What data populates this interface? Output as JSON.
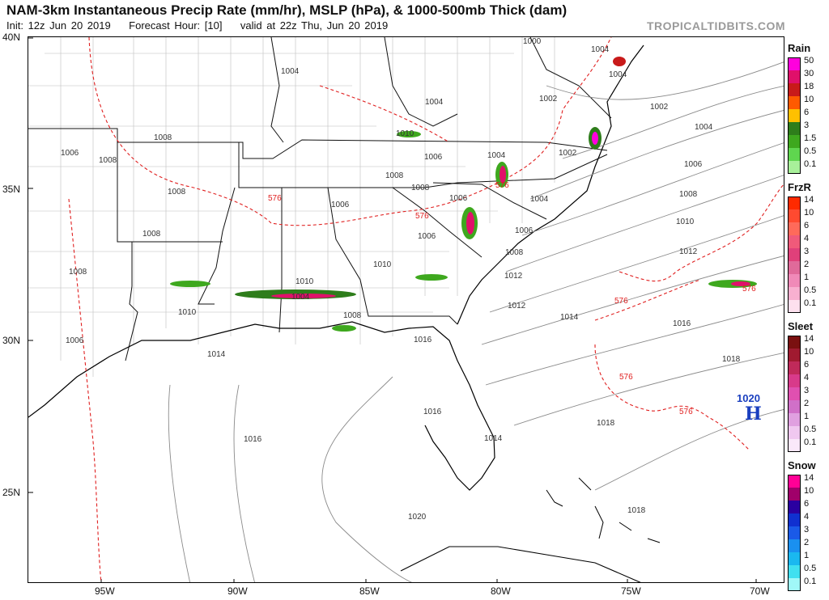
{
  "header": {
    "title": "NAM-3km Instantaneous Precip Rate (mm/hr), MSLP (hPa), & 1000-500mb Thick (dam)",
    "init": "Init: 12z Jun 20 2019",
    "forecast_hour": "Forecast Hour: [10]",
    "valid": "valid at 22z Thu, Jun 20 2019",
    "brand": "TROPICALTIDBITS.COM"
  },
  "axes": {
    "lat_labels": [
      "40N",
      "35N",
      "30N",
      "25N"
    ],
    "lon_labels": [
      "95W",
      "90W",
      "85W",
      "80W",
      "75W",
      "70W"
    ]
  },
  "isobar_labels": [
    "1000",
    "1004",
    "1006",
    "1008",
    "1008",
    "1008",
    "1008",
    "1006",
    "1004",
    "1008",
    "1006",
    "1004",
    "1008",
    "1006",
    "1006",
    "1008",
    "1004",
    "1004",
    "1002",
    "1004",
    "1002",
    "1002",
    "1004",
    "1006",
    "1006",
    "1008",
    "1010",
    "1012",
    "1014",
    "1016",
    "1018",
    "1020",
    "1008",
    "1006",
    "1004",
    "1008",
    "1010",
    "1010",
    "1012",
    "1010",
    "1012",
    "1010",
    "1014",
    "1016",
    "1016",
    "1014",
    "1016",
    "1018",
    "1018"
  ],
  "thickness_labels": [
    "576",
    "576",
    "576",
    "576",
    "576",
    "576",
    "576"
  ],
  "high_center": {
    "pressure": "1020",
    "symbol": "H"
  },
  "legends": [
    {
      "title": "Rain",
      "ticks": [
        "50",
        "30",
        "18",
        "10",
        "6",
        "3",
        "1.5",
        "0.5",
        "0.1"
      ],
      "colors": [
        "#ff00dd",
        "#e0106a",
        "#c81a1a",
        "#ff5a00",
        "#ffc000",
        "#2e7d1b",
        "#3ea81e",
        "#5fd64f",
        "#a8f09a"
      ]
    },
    {
      "title": "FrzR",
      "ticks": [
        "14",
        "10",
        "6",
        "4",
        "3",
        "2",
        "1",
        "0.5",
        "0.1"
      ],
      "colors": [
        "#ff2a00",
        "#ff4a30",
        "#ff6a5a",
        "#f05a7a",
        "#e0407a",
        "#e06a9a",
        "#f08ab8",
        "#f8b0d0",
        "#fde0ee"
      ]
    },
    {
      "title": "Sleet",
      "ticks": [
        "14",
        "10",
        "6",
        "4",
        "3",
        "2",
        "1",
        "0.5",
        "0.1"
      ],
      "colors": [
        "#7a1010",
        "#a01a30",
        "#c02a5a",
        "#d83a8a",
        "#e050b0",
        "#d070c8",
        "#e0a0e0",
        "#f0c8f0",
        "#fae8fa"
      ]
    },
    {
      "title": "Snow",
      "ticks": [
        "14",
        "10",
        "6",
        "4",
        "3",
        "2",
        "1",
        "0.5",
        "0.1"
      ],
      "colors": [
        "#ff0096",
        "#a0006a",
        "#2a00a0",
        "#1030d0",
        "#1a5ae8",
        "#1a90f0",
        "#1ab8f0",
        "#40e0f0",
        "#a0f8f8"
      ]
    }
  ]
}
